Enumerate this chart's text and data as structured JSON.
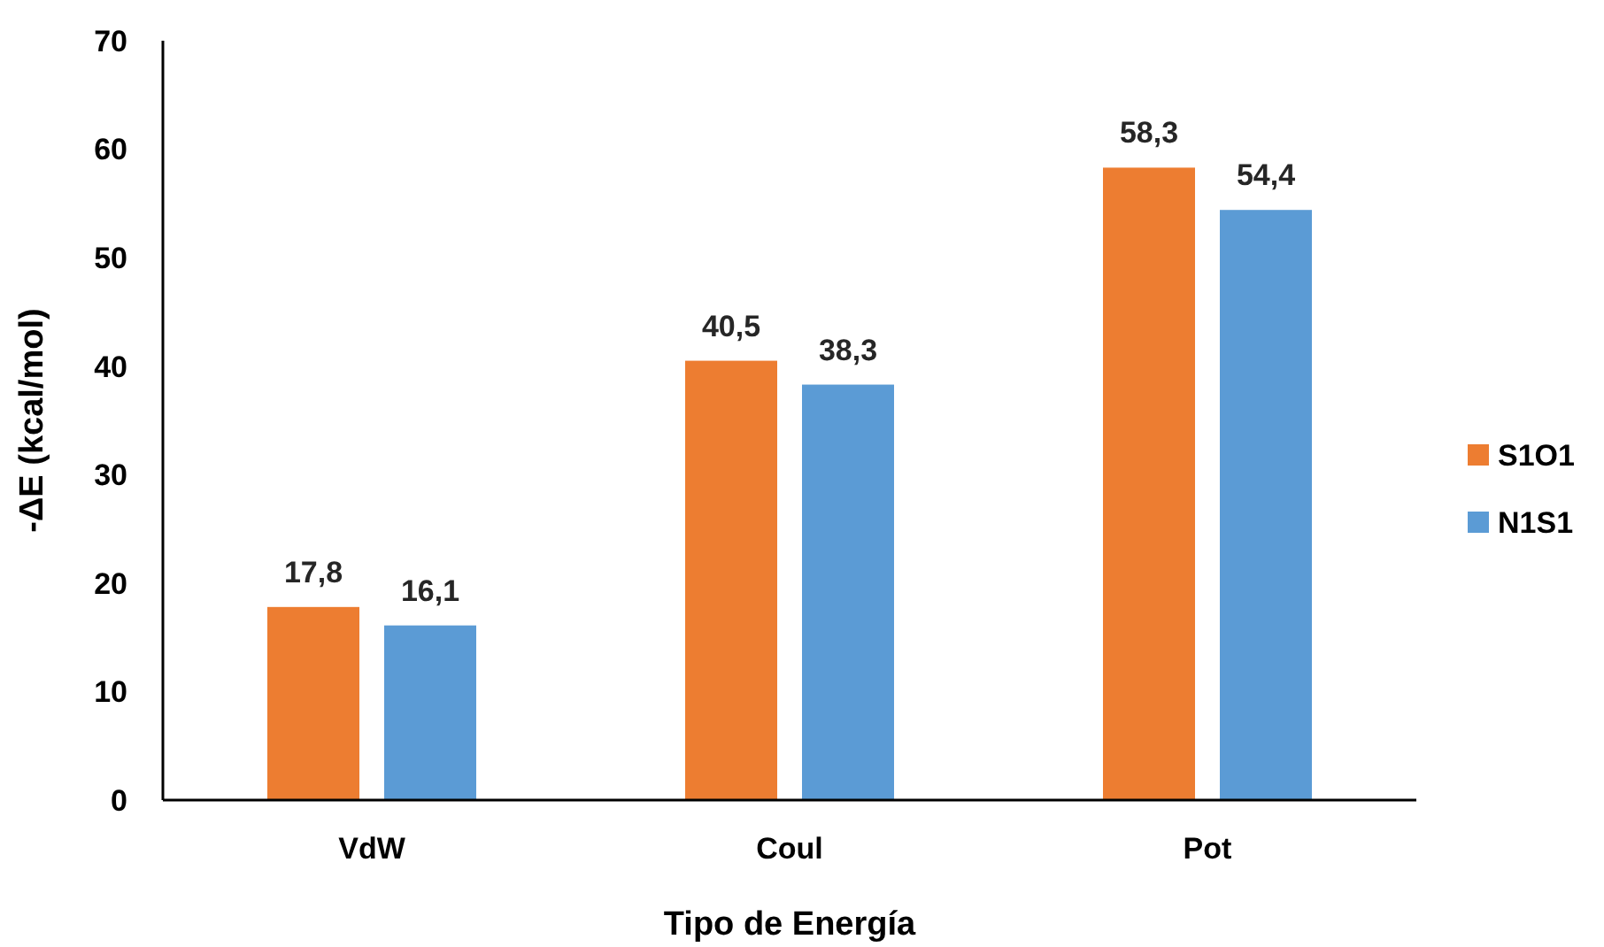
{
  "chart_data": {
    "type": "bar",
    "xlabel": "Tipo de Energía",
    "ylabel": "-ΔE (kcal/mol)",
    "categories": [
      "VdW",
      "Coul",
      "Pot"
    ],
    "series": [
      {
        "name": "S1O1",
        "color": "#ed7d31",
        "values": [
          17.8,
          40.5,
          58.3
        ],
        "value_labels": [
          "17,8",
          "40,5",
          "58,3"
        ]
      },
      {
        "name": "N1S1",
        "color": "#5b9bd5",
        "values": [
          16.1,
          38.3,
          54.4
        ],
        "value_labels": [
          "16,1",
          "38,3",
          "54,4"
        ]
      }
    ],
    "ylim": [
      0,
      70
    ],
    "yticks": [
      0,
      10,
      20,
      30,
      40,
      50,
      60,
      70
    ],
    "grid": false,
    "legend": "right"
  }
}
